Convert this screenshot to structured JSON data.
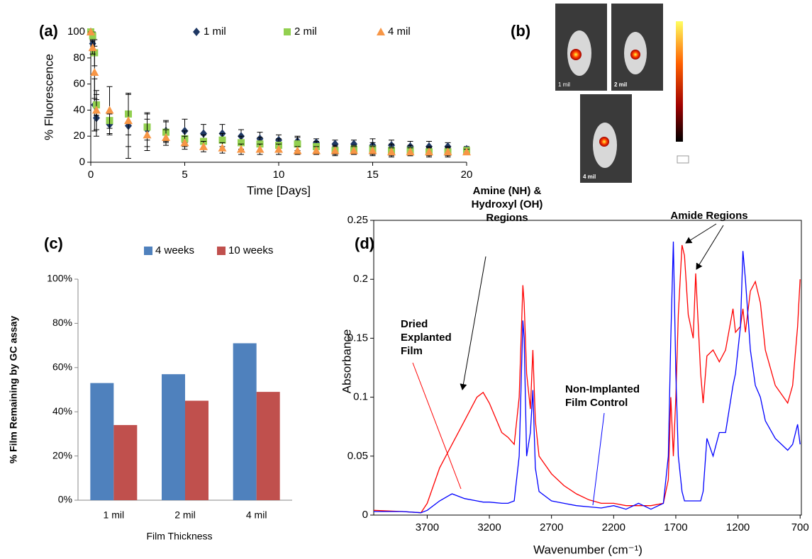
{
  "chart_data": [
    {
      "type": "scatter",
      "panel_label": "(a)",
      "xlabel": "Time [Days]",
      "ylabel": "% Fluorescence",
      "x": [
        0,
        0.1,
        0.2,
        0.3,
        1,
        2,
        3,
        4,
        5,
        6,
        7,
        8,
        9,
        10,
        11,
        12,
        13,
        14,
        15,
        16,
        17,
        18,
        19,
        20
      ],
      "series": [
        {
          "name": "1 mil",
          "color": "#1f3864",
          "marker": "diamond",
          "values": [
            100,
            91,
            44,
            34,
            29,
            28,
            25,
            24,
            24,
            22,
            22,
            20,
            18,
            17,
            16,
            15,
            14,
            14,
            13,
            13,
            12,
            12,
            12,
            10
          ],
          "errors": [
            0,
            5,
            20,
            14,
            8,
            25,
            13,
            8,
            9,
            7,
            7,
            5,
            5,
            4,
            4,
            3,
            3,
            3,
            5,
            4,
            4,
            4,
            3,
            2
          ]
        },
        {
          "name": "2 mil",
          "color": "#92d050",
          "marker": "square",
          "values": [
            100,
            97,
            84,
            44,
            32,
            37,
            27,
            23,
            18,
            16,
            17,
            15,
            14,
            13,
            14,
            12,
            9,
            10,
            10,
            9,
            9,
            8,
            8,
            9
          ],
          "errors": [
            0,
            3,
            10,
            8,
            6,
            16,
            10,
            8,
            6,
            5,
            5,
            5,
            5,
            5,
            5,
            4,
            4,
            3,
            5,
            5,
            4,
            4,
            4,
            2
          ]
        },
        {
          "name": "4 mil",
          "color": "#f79646",
          "marker": "triangle",
          "values": [
            100,
            88,
            69,
            40,
            40,
            32,
            21,
            19,
            15,
            12,
            11,
            10,
            10,
            10,
            9,
            9,
            9,
            9,
            9,
            8,
            8,
            8,
            8,
            8
          ],
          "errors": [
            0,
            5,
            20,
            15,
            18,
            20,
            12,
            6,
            5,
            4,
            4,
            4,
            4,
            4,
            3,
            3,
            3,
            3,
            3,
            3,
            3,
            3,
            3,
            2
          ]
        }
      ],
      "xlim": [
        0,
        20
      ],
      "xticks": [
        0,
        5,
        10,
        15,
        20
      ],
      "ylim": [
        0,
        100
      ],
      "yticks": [
        0,
        20,
        40,
        60,
        80,
        100
      ]
    },
    {
      "type": "bar",
      "panel_label": "(c)",
      "xlabel": "Film Thickness",
      "ylabel": "% Film Remaining by GC assay",
      "categories": [
        "1 mil",
        "2 mil",
        "4 mil"
      ],
      "series": [
        {
          "name": "4 weeks",
          "color": "#4f81bd",
          "values": [
            53,
            57,
            71
          ]
        },
        {
          "name": "10 weeks",
          "color": "#c0504d",
          "values": [
            34,
            45,
            49
          ]
        }
      ],
      "ylim": [
        0,
        100
      ],
      "yticks": [
        {
          "value": 0,
          "label": "0%"
        },
        {
          "value": 20,
          "label": "20%"
        },
        {
          "value": 40,
          "label": "40%"
        },
        {
          "value": 60,
          "label": "60%"
        },
        {
          "value": 80,
          "label": "80%"
        },
        {
          "value": 100,
          "label": "100%"
        }
      ]
    },
    {
      "type": "line",
      "panel_label": "(d)",
      "xlabel": "Wavenumber (cm⁻¹)",
      "ylabel": "Absorbance",
      "x": [
        4130,
        3900,
        3750,
        3700,
        3600,
        3500,
        3400,
        3300,
        3250,
        3200,
        3100,
        3050,
        3000,
        2960,
        2930,
        2920,
        2900,
        2870,
        2850,
        2830,
        2800,
        2700,
        2600,
        2500,
        2400,
        2300,
        2200,
        2100,
        2000,
        1900,
        1800,
        1760,
        1740,
        1720,
        1700,
        1680,
        1650,
        1630,
        1600,
        1560,
        1540,
        1500,
        1480,
        1450,
        1400,
        1350,
        1300,
        1240,
        1220,
        1180,
        1160,
        1140,
        1100,
        1060,
        1020,
        980,
        900,
        800,
        760,
        720,
        700
      ],
      "series": [
        {
          "color": "#ff0000",
          "values": [
            0.004,
            0.003,
            0.002,
            0.01,
            0.04,
            0.06,
            0.08,
            0.1,
            0.104,
            0.095,
            0.07,
            0.066,
            0.06,
            0.1,
            0.195,
            0.18,
            0.12,
            0.09,
            0.14,
            0.08,
            0.05,
            0.035,
            0.025,
            0.018,
            0.013,
            0.01,
            0.01,
            0.008,
            0.008,
            0.008,
            0.01,
            0.03,
            0.1,
            0.05,
            0.1,
            0.17,
            0.229,
            0.22,
            0.17,
            0.15,
            0.205,
            0.12,
            0.095,
            0.135,
            0.14,
            0.13,
            0.14,
            0.175,
            0.155,
            0.16,
            0.175,
            0.155,
            0.19,
            0.198,
            0.18,
            0.14,
            0.11,
            0.095,
            0.11,
            0.16,
            0.2
          ]
        },
        {
          "color": "#0000ff",
          "values": [
            0.003,
            0.003,
            0.002,
            0.004,
            0.012,
            0.018,
            0.014,
            0.012,
            0.011,
            0.011,
            0.01,
            0.01,
            0.012,
            0.05,
            0.165,
            0.15,
            0.05,
            0.07,
            0.106,
            0.04,
            0.02,
            0.012,
            0.01,
            0.008,
            0.007,
            0.006,
            0.008,
            0.005,
            0.01,
            0.005,
            0.01,
            0.05,
            0.15,
            0.232,
            0.12,
            0.05,
            0.02,
            0.012,
            0.012,
            0.012,
            0.012,
            0.012,
            0.02,
            0.065,
            0.05,
            0.07,
            0.07,
            0.11,
            0.12,
            0.16,
            0.224,
            0.2,
            0.14,
            0.11,
            0.1,
            0.08,
            0.065,
            0.055,
            0.06,
            0.077,
            0.06
          ]
        }
      ],
      "xlim": [
        4130,
        690
      ],
      "xticks": [
        3700,
        3200,
        2700,
        2200,
        1700,
        1200,
        700
      ],
      "ylim": [
        0,
        0.25
      ],
      "yticks": [
        0,
        0.05,
        0.1,
        0.15,
        0.2,
        0.25
      ],
      "annotations": [
        {
          "lines": [
            "Amine (NH) &",
            "Hydroxyl (OH)",
            "Regions"
          ]
        },
        {
          "lines": [
            "Amide Regions"
          ]
        },
        {
          "lines": [
            "Dried",
            "Explanted",
            "Film"
          ]
        },
        {
          "lines": [
            "Non-Implanted",
            "Film Control"
          ]
        }
      ]
    }
  ],
  "figure_b": {
    "panel_label": "(b)",
    "photos": [
      "1 mil",
      "2 mil",
      "4 mil"
    ]
  }
}
